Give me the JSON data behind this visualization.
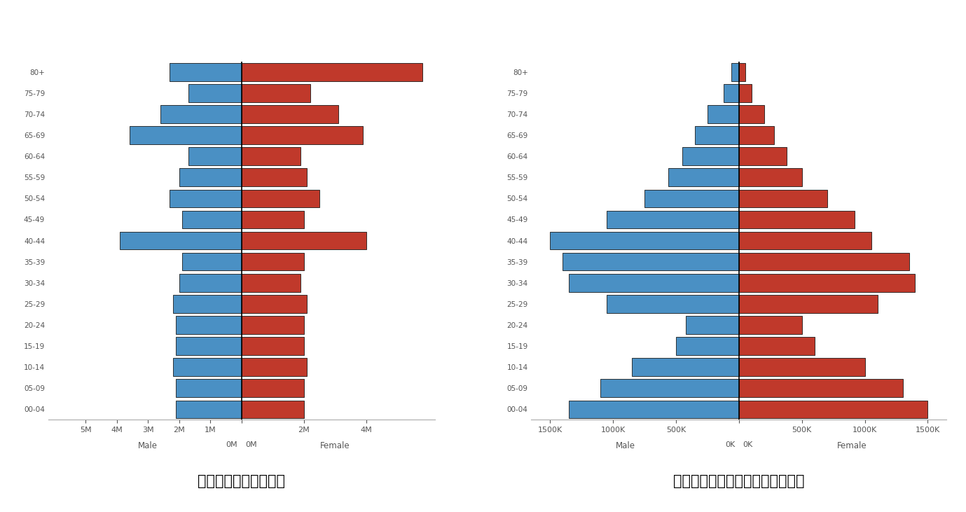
{
  "age_groups": [
    "00-04",
    "05-09",
    "10-14",
    "15-19",
    "20-24",
    "25-29",
    "30-34",
    "35-39",
    "40-44",
    "45-49",
    "50-54",
    "55-59",
    "60-64",
    "65-69",
    "70-74",
    "75-79",
    "80+"
  ],
  "japan_male": [
    2100000,
    2100000,
    2200000,
    2100000,
    2100000,
    2200000,
    2000000,
    1900000,
    3900000,
    1900000,
    2300000,
    2000000,
    1700000,
    3600000,
    2600000,
    1700000,
    2300000
  ],
  "japan_female": [
    2000000,
    2000000,
    2100000,
    2000000,
    2000000,
    2100000,
    1900000,
    2000000,
    4000000,
    2000000,
    2500000,
    2100000,
    1900000,
    3900000,
    3100000,
    2200000,
    5800000
  ],
  "saudi_male": [
    1350000,
    1100000,
    850000,
    500000,
    420000,
    1050000,
    1350000,
    1400000,
    1500000,
    1050000,
    750000,
    560000,
    450000,
    350000,
    250000,
    120000,
    60000
  ],
  "saudi_female": [
    1500000,
    1300000,
    1000000,
    600000,
    500000,
    1100000,
    1400000,
    1350000,
    1050000,
    920000,
    700000,
    500000,
    380000,
    280000,
    200000,
    100000,
    50000
  ],
  "male_color": "#4a90c4",
  "female_color": "#c0392b",
  "bar_edge_color": "#1a1a1a",
  "title_japan": "日本の年代別人口構成",
  "title_saudi": "サウジアラビアの年代別人口構成",
  "japan_xlim": 6200000,
  "saudi_xlim": 1650000,
  "japan_xticks": [
    -5000000,
    -4000000,
    -3000000,
    -2000000,
    -1000000,
    0,
    2000000,
    4000000
  ],
  "saudi_xticks": [
    -1500000,
    -1000000,
    -500000,
    0,
    500000,
    1000000,
    1500000
  ],
  "bg_color": "#ffffff"
}
